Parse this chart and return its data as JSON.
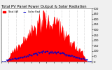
{
  "title": "Total PV Panel Power Output & Solar Radiation",
  "legend_pv": "Total kW  ——",
  "bg_color": "#f0f0f0",
  "plot_bg_color": "#ffffff",
  "grid_color": "#aaaaaa",
  "pv_color": "#ff0000",
  "radiation_color": "#0000cc",
  "num_points": 144,
  "title_fontsize": 3.8,
  "tick_fontsize": 2.8,
  "legend_fontsize": 2.5,
  "y_max": 500,
  "y_ticks": [
    0,
    50,
    100,
    150,
    200,
    250,
    300,
    350,
    400,
    450,
    500
  ],
  "rad_scale": 0.18
}
